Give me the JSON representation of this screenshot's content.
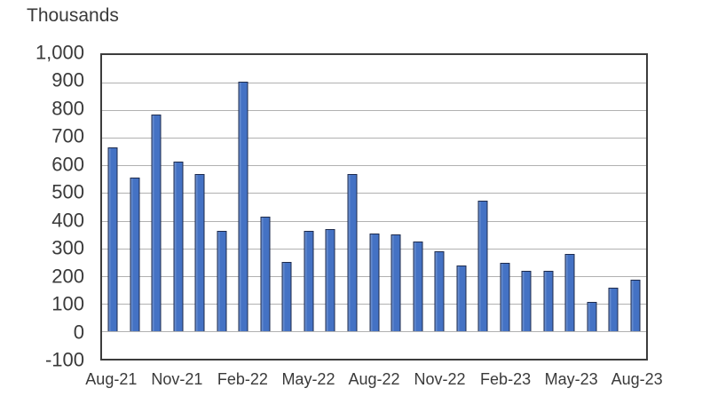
{
  "chart_data": {
    "type": "bar",
    "title": "Thousands",
    "categories": [
      "Aug-21",
      "Sep-21",
      "Oct-21",
      "Nov-21",
      "Dec-21",
      "Jan-22",
      "Feb-22",
      "Mar-22",
      "Apr-22",
      "May-22",
      "Jun-22",
      "Jul-22",
      "Aug-22",
      "Sep-22",
      "Oct-22",
      "Nov-22",
      "Dec-22",
      "Jan-23",
      "Feb-23",
      "Mar-23",
      "Apr-23",
      "May-23",
      "Jun-23",
      "Jul-23",
      "Aug-23"
    ],
    "values": [
      664,
      557,
      784,
      614,
      568,
      364,
      904,
      414,
      252,
      364,
      368,
      568,
      352,
      350,
      324,
      290,
      239,
      472,
      248,
      217,
      217,
      281,
      105,
      157,
      187
    ],
    "x_tick_labels": [
      "Aug-21",
      "Nov-21",
      "Feb-22",
      "May-22",
      "Aug-22",
      "Nov-22",
      "Feb-23",
      "May-23",
      "Aug-23"
    ],
    "x_tick_every": 3,
    "y_ticks": [
      1000,
      900,
      800,
      700,
      600,
      500,
      400,
      300,
      200,
      100,
      0,
      -100
    ],
    "y_tick_labels": [
      "1,000",
      "900",
      "800",
      "700",
      "600",
      "500",
      "400",
      "300",
      "200",
      "100",
      "0",
      "-100"
    ],
    "ylim": [
      -100,
      1000
    ],
    "xlabel": "",
    "ylabel": "Thousands",
    "grid": "horizontal",
    "legend": "none",
    "colors": {
      "bar_fill": "#4472c4",
      "bar_border": "#1e2b4d",
      "gridline": "#b1b1b1",
      "plot_border": "#3c3c3c",
      "text": "#3a3a3a",
      "background": "#ffffff"
    }
  }
}
